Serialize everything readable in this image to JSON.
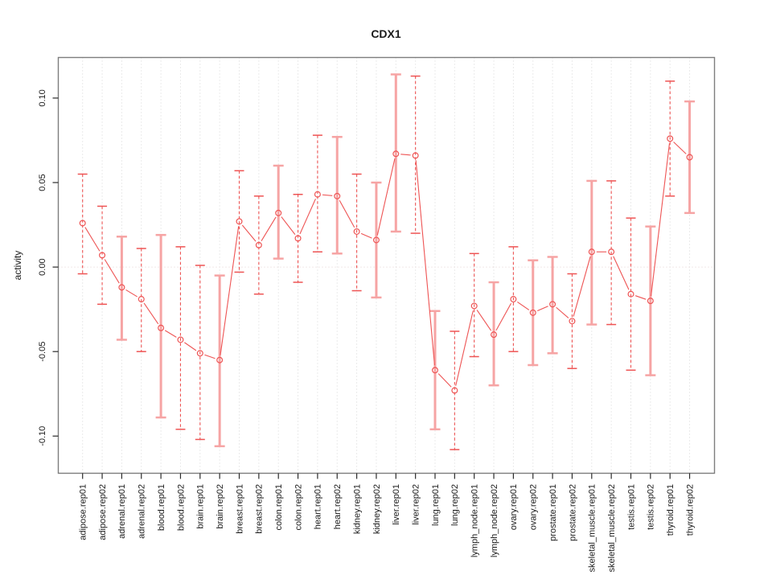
{
  "chart_data": {
    "type": "line",
    "title": "CDX1",
    "xlabel": "",
    "ylabel": "activity",
    "marker": "open-circle",
    "error_bars": true,
    "x_tick_labels_rotated": true,
    "grid": {
      "vertical": "dotted",
      "horizontal": false,
      "zero_line": "dotted"
    },
    "legend": "none",
    "ylim": [
      -0.122,
      0.124
    ],
    "series_color": "#ee5454",
    "band_color": "#f6a4a4",
    "grid_color": "#d6d6d6",
    "zero_line_color": "#e3cfcf",
    "frame_color": "#7d7d7d",
    "axis_color": "#2b2b2b",
    "y_ticks": [
      {
        "value": -0.1,
        "label": "-0.10"
      },
      {
        "value": -0.05,
        "label": "-0.05"
      },
      {
        "value": 0.0,
        "label": "0.00"
      },
      {
        "value": 0.05,
        "label": "0.05"
      },
      {
        "value": 0.1,
        "label": "0.10"
      }
    ],
    "points": [
      {
        "category": "adipose.rep01",
        "value": 0.026,
        "upper": 0.055,
        "lower": -0.004,
        "bar_style": "dashed"
      },
      {
        "category": "adipose.rep02",
        "value": 0.007,
        "upper": 0.036,
        "lower": -0.022,
        "bar_style": "dashed"
      },
      {
        "category": "adrenal.rep01",
        "value": -0.012,
        "upper": 0.018,
        "lower": -0.043,
        "bar_style": "solid"
      },
      {
        "category": "adrenal.rep02",
        "value": -0.019,
        "upper": 0.011,
        "lower": -0.05,
        "bar_style": "dashed"
      },
      {
        "category": "blood.rep01",
        "value": -0.036,
        "upper": 0.019,
        "lower": -0.089,
        "bar_style": "solid"
      },
      {
        "category": "blood.rep02",
        "value": -0.043,
        "upper": 0.012,
        "lower": -0.096,
        "bar_style": "dashed"
      },
      {
        "category": "brain.rep01",
        "value": -0.051,
        "upper": 0.001,
        "lower": -0.102,
        "bar_style": "dashed"
      },
      {
        "category": "brain.rep02",
        "value": -0.055,
        "upper": -0.005,
        "lower": -0.106,
        "bar_style": "solid"
      },
      {
        "category": "breast.rep01",
        "value": 0.027,
        "upper": 0.057,
        "lower": -0.003,
        "bar_style": "dashed"
      },
      {
        "category": "breast.rep02",
        "value": 0.013,
        "upper": 0.042,
        "lower": -0.016,
        "bar_style": "dashed"
      },
      {
        "category": "colon.rep01",
        "value": 0.032,
        "upper": 0.06,
        "lower": 0.005,
        "bar_style": "solid"
      },
      {
        "category": "colon.rep02",
        "value": 0.017,
        "upper": 0.043,
        "lower": -0.009,
        "bar_style": "dashed"
      },
      {
        "category": "heart.rep01",
        "value": 0.043,
        "upper": 0.078,
        "lower": 0.009,
        "bar_style": "dashed"
      },
      {
        "category": "heart.rep02",
        "value": 0.042,
        "upper": 0.077,
        "lower": 0.008,
        "bar_style": "solid"
      },
      {
        "category": "kidney.rep01",
        "value": 0.021,
        "upper": 0.055,
        "lower": -0.014,
        "bar_style": "dashed"
      },
      {
        "category": "kidney.rep02",
        "value": 0.016,
        "upper": 0.05,
        "lower": -0.018,
        "bar_style": "solid"
      },
      {
        "category": "liver.rep01",
        "value": 0.067,
        "upper": 0.114,
        "lower": 0.021,
        "bar_style": "solid"
      },
      {
        "category": "liver.rep02",
        "value": 0.066,
        "upper": 0.113,
        "lower": 0.02,
        "bar_style": "dashed"
      },
      {
        "category": "lung.rep01",
        "value": -0.061,
        "upper": -0.026,
        "lower": -0.096,
        "bar_style": "solid"
      },
      {
        "category": "lung.rep02",
        "value": -0.073,
        "upper": -0.038,
        "lower": -0.108,
        "bar_style": "dashed"
      },
      {
        "category": "lymph_node.rep01",
        "value": -0.023,
        "upper": 0.008,
        "lower": -0.053,
        "bar_style": "dashed"
      },
      {
        "category": "lymph_node.rep02",
        "value": -0.04,
        "upper": -0.009,
        "lower": -0.07,
        "bar_style": "solid"
      },
      {
        "category": "ovary.rep01",
        "value": -0.019,
        "upper": 0.012,
        "lower": -0.05,
        "bar_style": "dashed"
      },
      {
        "category": "ovary.rep02",
        "value": -0.027,
        "upper": 0.004,
        "lower": -0.058,
        "bar_style": "solid"
      },
      {
        "category": "prostate.rep01",
        "value": -0.022,
        "upper": 0.006,
        "lower": -0.051,
        "bar_style": "solid"
      },
      {
        "category": "prostate.rep02",
        "value": -0.032,
        "upper": -0.004,
        "lower": -0.06,
        "bar_style": "dashed"
      },
      {
        "category": "skeletal_muscle.rep01",
        "value": 0.009,
        "upper": 0.051,
        "lower": -0.034,
        "bar_style": "solid"
      },
      {
        "category": "skeletal_muscle.rep02",
        "value": 0.009,
        "upper": 0.051,
        "lower": -0.034,
        "bar_style": "dashed"
      },
      {
        "category": "testis.rep01",
        "value": -0.016,
        "upper": 0.029,
        "lower": -0.061,
        "bar_style": "dashed"
      },
      {
        "category": "testis.rep02",
        "value": -0.02,
        "upper": 0.024,
        "lower": -0.064,
        "bar_style": "solid"
      },
      {
        "category": "thyroid.rep01",
        "value": 0.076,
        "upper": 0.11,
        "lower": 0.042,
        "bar_style": "dashed"
      },
      {
        "category": "thyroid.rep02",
        "value": 0.065,
        "upper": 0.098,
        "lower": 0.032,
        "bar_style": "solid"
      }
    ]
  }
}
